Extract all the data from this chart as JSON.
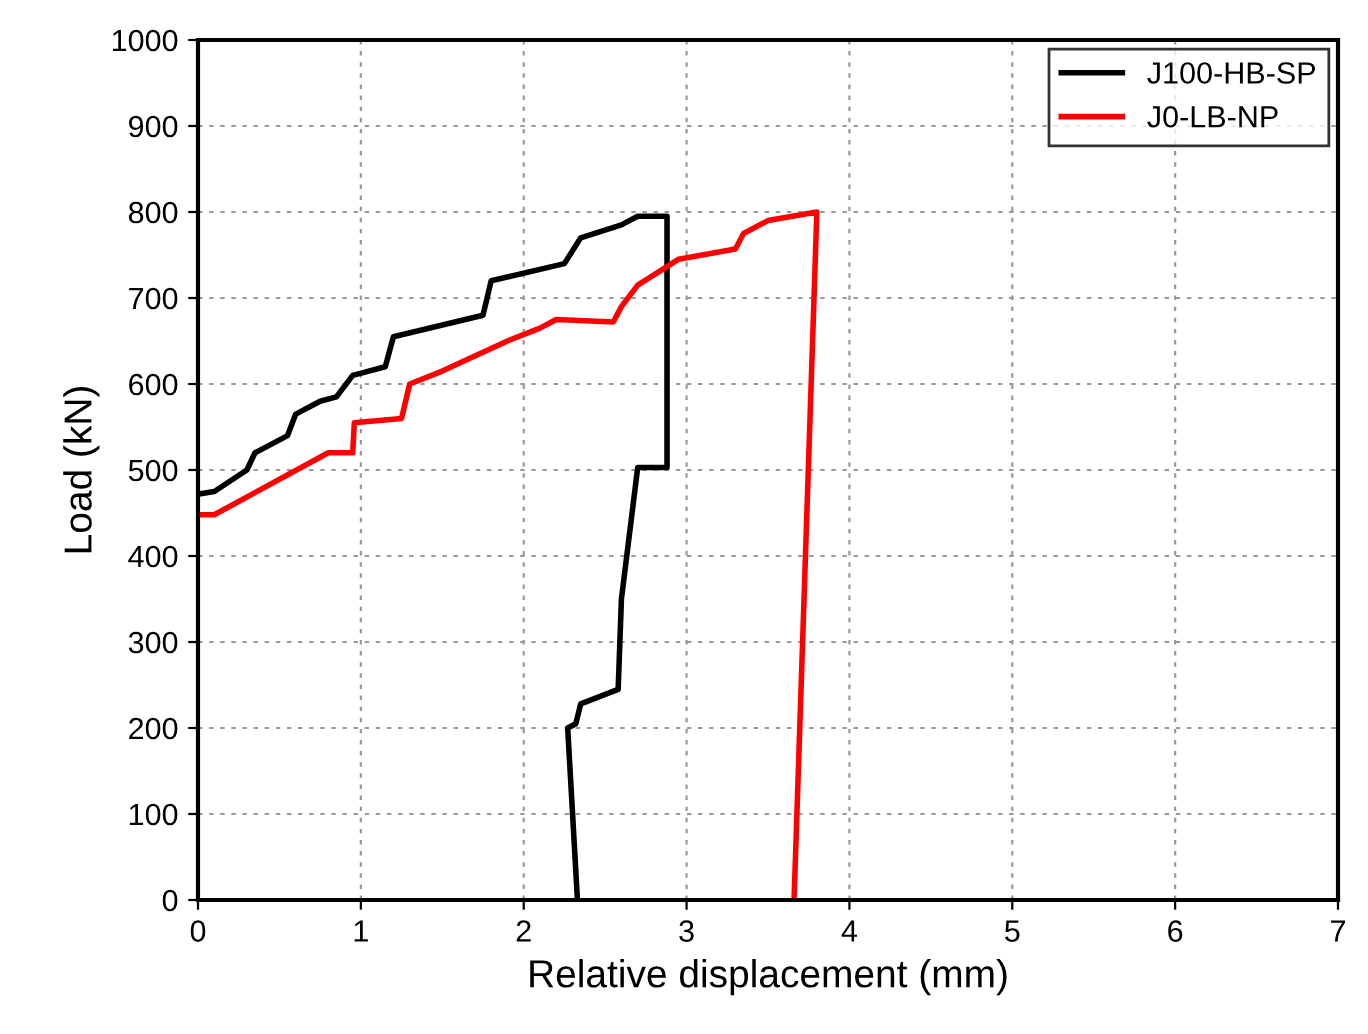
{
  "chart_data": {
    "type": "line",
    "xlabel": "Relative displacement (mm)",
    "ylabel": "Load (kN)",
    "xlim": [
      0,
      7
    ],
    "ylim": [
      0,
      1000
    ],
    "xticks": [
      0,
      1,
      2,
      3,
      4,
      5,
      6,
      7
    ],
    "yticks": [
      0,
      100,
      200,
      300,
      400,
      500,
      600,
      700,
      800,
      900,
      1000
    ],
    "grid": true,
    "legend": "top right",
    "marker": "none",
    "line_style": "solid",
    "series": [
      {
        "name": "J100-HB-SP",
        "color": "#000000",
        "x": [
          0,
          0.1,
          0.3,
          0.35,
          0.55,
          0.6,
          0.75,
          0.85,
          0.95,
          1.15,
          1.2,
          1.75,
          1.8,
          2.25,
          2.35,
          2.6,
          2.7,
          2.88,
          2.88,
          2.7,
          2.6,
          2.58,
          2.35,
          2.32,
          2.27,
          2.33
        ],
        "values": [
          472,
          475,
          500,
          520,
          540,
          565,
          580,
          585,
          610,
          620,
          655,
          680,
          720,
          740,
          770,
          785,
          795,
          795,
          503,
          503,
          350,
          245,
          228,
          205,
          200,
          0
        ]
      },
      {
        "name": "J0-LB-NP",
        "color": "#ff0000",
        "x": [
          0,
          0.1,
          0.8,
          0.95,
          0.96,
          1.25,
          1.3,
          1.5,
          1.9,
          2.1,
          2.2,
          2.55,
          2.6,
          2.7,
          2.95,
          3.3,
          3.35,
          3.5,
          3.8,
          3.66
        ],
        "values": [
          448,
          448,
          520,
          520,
          555,
          560,
          600,
          615,
          650,
          665,
          675,
          672,
          690,
          715,
          745,
          757,
          775,
          790,
          800,
          0
        ]
      }
    ]
  }
}
